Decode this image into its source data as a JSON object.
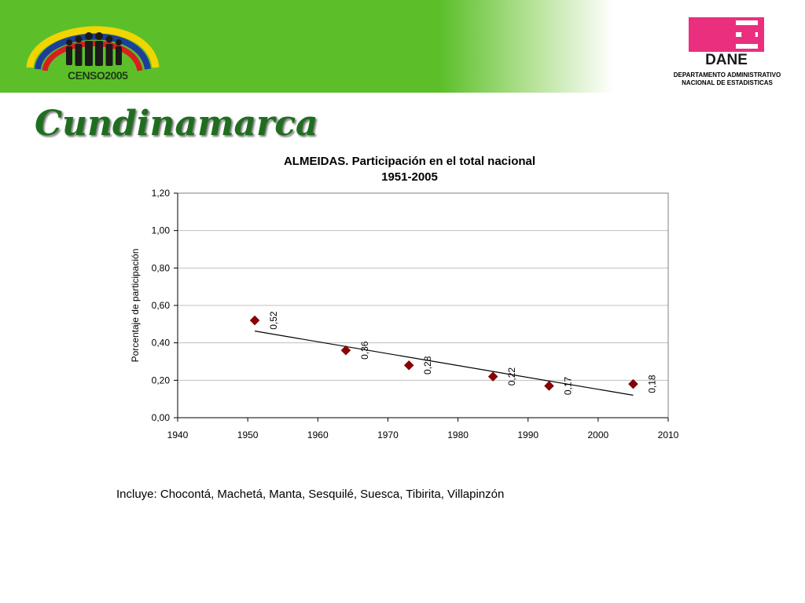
{
  "header": {
    "censo_logo_text": "CENSO2005",
    "dane_logo_text": "DANE",
    "dane_subtitle_line1": "DEPARTAMENTO ADMINISTRATIVO",
    "dane_subtitle_line2": "NACIONAL DE ESTADISTICAS"
  },
  "page_title": "Cundinamarca",
  "footnote": "Incluye: Chocontá, Machetá, Manta, Sesquilé, Suesca, Tibirita, Villapinzón",
  "chart_data": {
    "type": "scatter",
    "title": "ALMEIDAS. Participación en el total nacional",
    "subtitle": "1951-2005",
    "xlabel": "",
    "ylabel": "Porcentaje de participación",
    "xlim": [
      1940,
      2010
    ],
    "ylim": [
      0,
      1.2
    ],
    "x_ticks": [
      "1940",
      "1950",
      "1960",
      "1970",
      "1980",
      "1990",
      "2000",
      "2010"
    ],
    "y_ticks": [
      "0,00",
      "0,20",
      "0,40",
      "0,60",
      "0,80",
      "1,00",
      "1,20"
    ],
    "grid": true,
    "marker_color": "#8b0000",
    "trendline": true,
    "series": [
      {
        "x": [
          1951,
          1964,
          1973,
          1985,
          1993,
          2005
        ],
        "y": [
          0.52,
          0.36,
          0.28,
          0.22,
          0.17,
          0.18
        ],
        "labels": [
          "0,52",
          "0,36",
          "0,28",
          "0,22",
          "0,17",
          "0,18"
        ]
      }
    ]
  }
}
